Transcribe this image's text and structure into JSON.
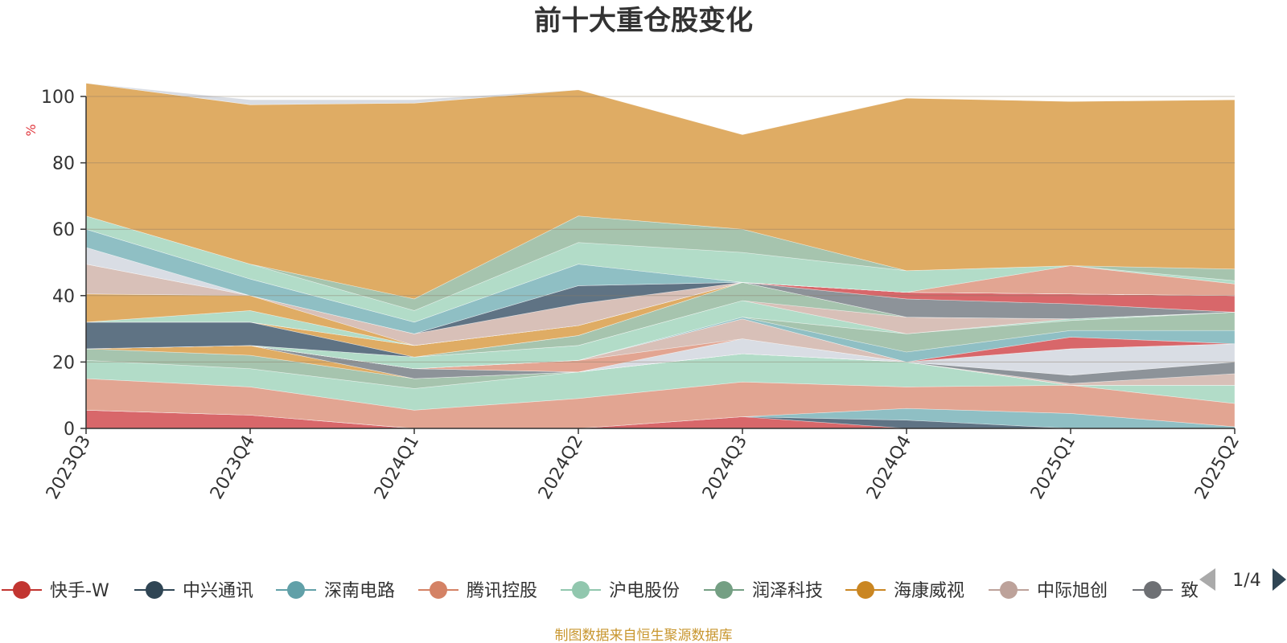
{
  "chart_data": {
    "type": "area",
    "title": "前十大重仓股变化",
    "ylabel": "%",
    "ylim": [
      0,
      100
    ],
    "yticks": [
      0,
      20,
      40,
      60,
      80,
      100
    ],
    "grid": true,
    "stacked": true,
    "categories": [
      "2023Q3",
      "2023Q4",
      "2024Q1",
      "2024Q2",
      "2024Q3",
      "2024Q4",
      "2025Q1",
      "2025Q2"
    ],
    "series": [
      {
        "name": "快手-W",
        "color": "#d8676a",
        "values": [
          5.5,
          4,
          0,
          0,
          3.5,
          0,
          0,
          0
        ]
      },
      {
        "name": "中兴通讯",
        "color": "#5f7384",
        "values": [
          0,
          0,
          0,
          0,
          0,
          2.5,
          0,
          0
        ]
      },
      {
        "name": "深南电路",
        "color": "#8fbfc4",
        "values": [
          0,
          0,
          0,
          0,
          0,
          3.5,
          4.5,
          0.5
        ]
      },
      {
        "name": "腾讯控股",
        "color": "#e2a592",
        "values": [
          9.5,
          8.5,
          5.5,
          9,
          10.5,
          6.5,
          8.5,
          7
        ]
      },
      {
        "name": "沪电股份",
        "color": "#b2dcc8",
        "values": [
          5.5,
          5.5,
          6.5,
          8,
          8.5,
          7.5,
          0,
          5.5
        ]
      },
      {
        "name": "润泽科技",
        "color": "#a6c4ae",
        "values": [
          3.5,
          4,
          3,
          0,
          0,
          0,
          0,
          0
        ]
      },
      {
        "name": "海康威视",
        "color": "#dfac64",
        "values": [
          0,
          3,
          0,
          0,
          0,
          0,
          0,
          0
        ]
      },
      {
        "name": "中际旭创",
        "color": "#d8c0b8",
        "values": [
          0,
          0,
          0,
          0,
          0,
          0,
          0.5,
          3.5
        ]
      },
      {
        "name": "致",
        "color": "#8d9399",
        "values": [
          0,
          0,
          3,
          0,
          0,
          0,
          2.5,
          3.5
        ]
      },
      {
        "name": "",
        "color": "#d9dde4",
        "values": [
          0,
          0,
          0,
          0,
          4.5,
          0,
          8,
          5.5
        ]
      },
      {
        "name": "",
        "color": "#e2a592",
        "values": [
          0,
          0,
          0,
          3.5,
          0,
          0,
          0,
          0
        ]
      },
      {
        "name": "",
        "color": "#d8c0b8",
        "values": [
          0,
          0,
          0,
          0,
          6,
          0,
          0,
          0
        ]
      },
      {
        "name": "",
        "color": "#d8676a",
        "values": [
          0,
          0,
          0,
          0,
          0,
          0,
          3.5,
          0
        ]
      },
      {
        "name": "",
        "color": "#8fbfc4",
        "values": [
          0,
          0,
          0,
          0,
          0.5,
          3,
          2,
          4
        ]
      },
      {
        "name": "",
        "color": "#a6c4ae",
        "values": [
          0,
          0,
          0,
          0,
          0,
          5.5,
          3,
          5.5
        ]
      },
      {
        "name": "",
        "color": "#b2dcc8",
        "values": [
          0,
          0,
          3.5,
          4.5,
          5,
          0,
          0.5,
          0
        ]
      },
      {
        "name": "",
        "color": "#d8c0b8",
        "values": [
          0,
          0,
          0,
          0,
          0,
          5,
          0,
          0
        ]
      },
      {
        "name": "",
        "color": "#a6c4ae",
        "values": [
          0,
          0,
          0,
          3,
          5.5,
          0,
          0,
          0
        ]
      },
      {
        "name": "",
        "color": "#5f7384",
        "values": [
          8,
          7,
          0,
          0,
          0,
          0,
          0,
          0
        ]
      },
      {
        "name": "",
        "color": "#dfac64",
        "values": [
          0,
          0,
          3.5,
          3,
          0,
          0,
          0,
          0
        ]
      },
      {
        "name": "",
        "color": "#8d9399",
        "values": [
          0,
          0,
          0,
          0,
          0,
          5.5,
          4.5,
          0
        ]
      },
      {
        "name": "",
        "color": "#d8676a",
        "values": [
          0,
          0,
          0,
          0,
          0,
          2,
          3,
          5
        ]
      },
      {
        "name": "",
        "color": "#b2dcc8",
        "values": [
          0,
          3.5,
          0,
          0,
          0,
          0,
          0,
          0
        ]
      },
      {
        "name": "",
        "color": "#dfac64",
        "values": [
          8.5,
          4.5,
          0,
          0,
          0,
          0,
          0,
          0
        ]
      },
      {
        "name": "",
        "color": "#d8c0b8",
        "values": [
          9,
          0,
          3.5,
          6.5,
          0,
          0,
          0,
          0
        ]
      },
      {
        "name": "",
        "color": "#5f7384",
        "values": [
          0,
          0,
          0,
          5.5,
          0,
          0,
          0,
          0
        ]
      },
      {
        "name": "",
        "color": "#d9dde4",
        "values": [
          5,
          0,
          0,
          0,
          0,
          0,
          0,
          0
        ]
      },
      {
        "name": "",
        "color": "#8fbfc4",
        "values": [
          5.5,
          5,
          3.5,
          6.5,
          0,
          0,
          0,
          0
        ]
      },
      {
        "name": "",
        "color": "#e2a592",
        "values": [
          0,
          0,
          0,
          0,
          0,
          0,
          8.5,
          3.5
        ]
      },
      {
        "name": "",
        "color": "#b2dcc8",
        "values": [
          4,
          4.5,
          3.5,
          6.5,
          9,
          6.5,
          0,
          1
        ]
      },
      {
        "name": "",
        "color": "#a6c4ae",
        "values": [
          0,
          0,
          3.5,
          8,
          7,
          0,
          0,
          3.5
        ]
      },
      {
        "name": "",
        "color": "#dfac64",
        "values": [
          40,
          48,
          59,
          38,
          28.5,
          52,
          49.5,
          51
        ]
      },
      {
        "name": "",
        "color": "#d9dde4",
        "values": [
          0,
          1.5,
          1,
          0,
          0,
          0,
          0,
          0
        ]
      }
    ]
  },
  "legend": {
    "items": [
      {
        "label": "快手-W",
        "color": "#c23531"
      },
      {
        "label": "中兴通讯",
        "color": "#2f4554"
      },
      {
        "label": "深南电路",
        "color": "#61a0a8"
      },
      {
        "label": "腾讯控股",
        "color": "#d48265"
      },
      {
        "label": "沪电股份",
        "color": "#91c7ae"
      },
      {
        "label": "润泽科技",
        "color": "#749f83"
      },
      {
        "label": "海康威视",
        "color": "#ca8622"
      },
      {
        "label": "中际旭创",
        "color": "#bda29a"
      },
      {
        "label": "致",
        "color": "#6e7074"
      }
    ],
    "page": "1/4"
  },
  "source": "制图数据来自恒生聚源数据库"
}
